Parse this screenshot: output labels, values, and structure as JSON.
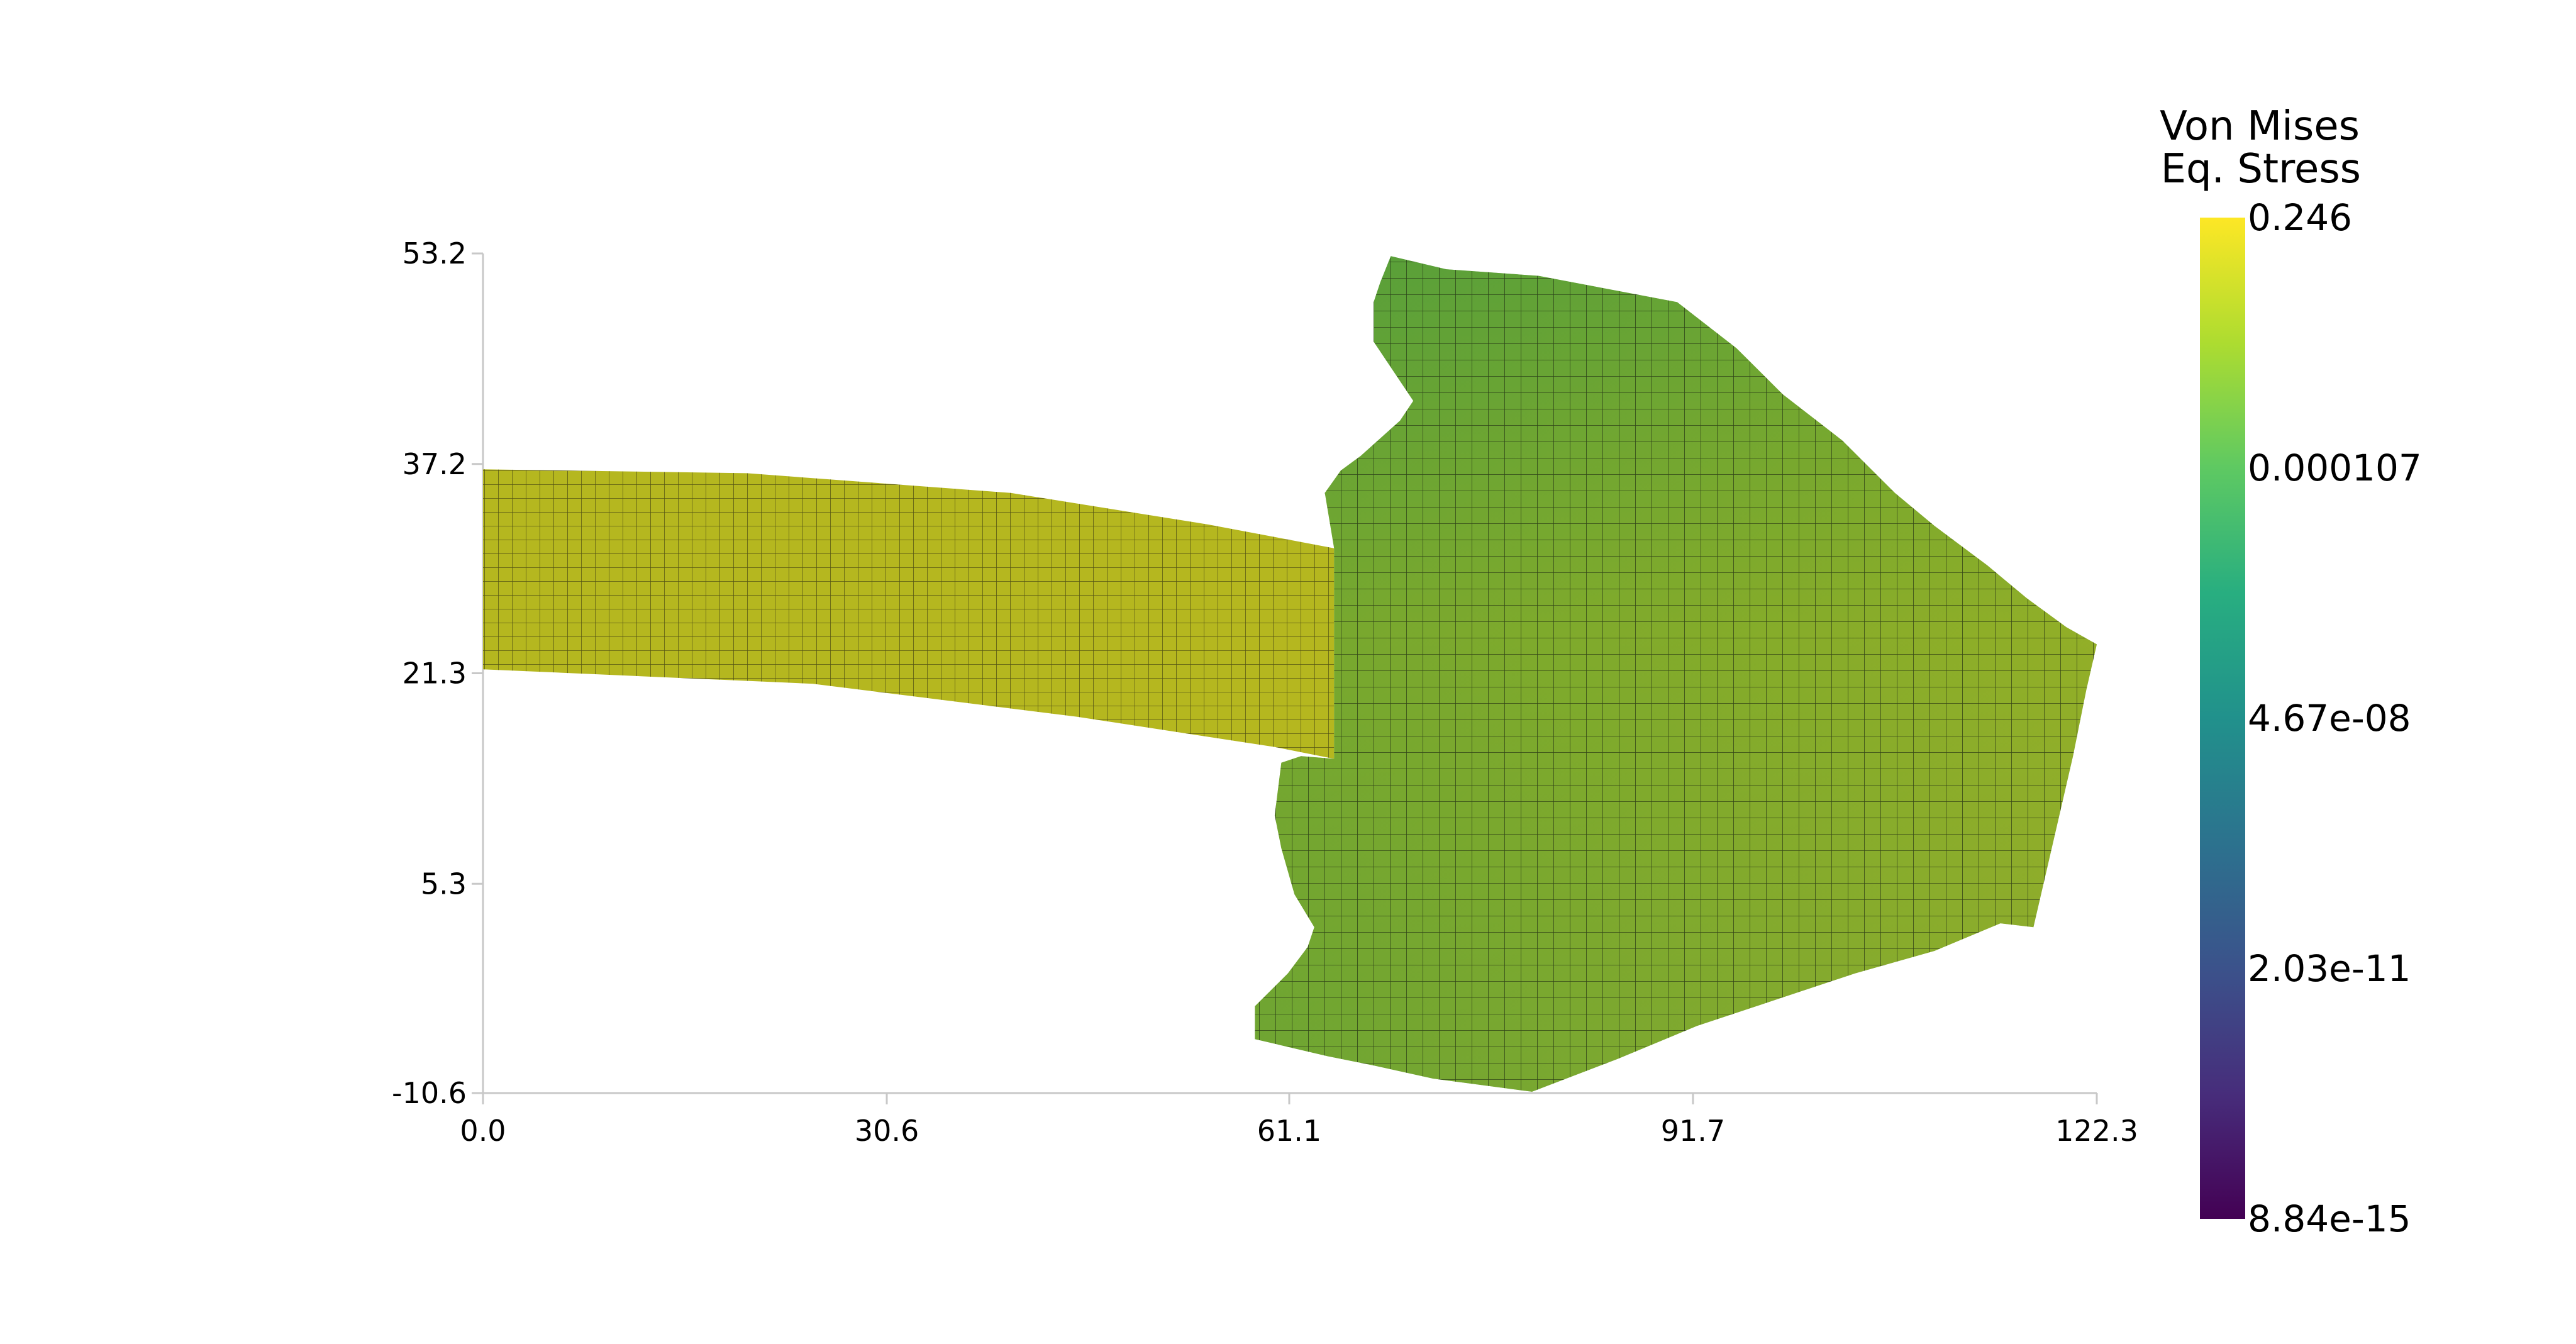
{
  "chart_data": {
    "type": "heatmap",
    "title": "",
    "xlabel": "",
    "ylabel": "",
    "xlim": [
      0.0,
      122.3
    ],
    "ylim": [
      -10.6,
      53.2
    ],
    "x_ticks": [
      "0.0",
      "30.6",
      "61.1",
      "91.7",
      "122.3"
    ],
    "y_ticks": [
      "53.2",
      "37.2",
      "21.3",
      "5.3",
      "-10.6"
    ],
    "grid": false,
    "colormap": "viridis",
    "colorbar": {
      "title_line1": "Von Mises",
      "title_line2": "Eq. Stress",
      "scale": "log",
      "labels": [
        "0.246",
        "0.000107",
        "4.67e-08",
        "2.03e-11",
        "8.84e-15"
      ],
      "stops": [
        "#440154",
        "#472d7b",
        "#3b528b",
        "#2c728e",
        "#21918c",
        "#28ae80",
        "#5ec962",
        "#addc30",
        "#fde725"
      ]
    },
    "mesh": {
      "beam": {
        "description_color": "#b5b71f",
        "top_edge": [
          [
            0.0,
            36.8
          ],
          [
            20,
            36.5
          ],
          [
            40,
            35.0
          ],
          [
            55,
            32.6
          ],
          [
            64.5,
            30.8
          ]
        ],
        "bottom_edge": [
          [
            64.5,
            14.8
          ],
          [
            60,
            15.7
          ],
          [
            45,
            18.0
          ],
          [
            25,
            20.5
          ],
          [
            0.0,
            21.6
          ]
        ]
      },
      "body": {
        "color_upper_left": "#4e9c3d",
        "color_center": "#7ea92c",
        "color_right_tip": "#b7b722",
        "outline": [
          [
            68.8,
            53.0
          ],
          [
            73,
            52.0
          ],
          [
            80,
            51.5
          ],
          [
            90.5,
            49.5
          ],
          [
            95,
            46.0
          ],
          [
            98.5,
            42.5
          ],
          [
            103,
            39.0
          ],
          [
            107,
            35.0
          ],
          [
            110,
            32.5
          ],
          [
            114,
            29.5
          ],
          [
            117,
            27.0
          ],
          [
            120,
            24.8
          ],
          [
            122.3,
            23.5
          ],
          [
            121.5,
            20.0
          ],
          [
            120.5,
            15.0
          ],
          [
            119,
            8.5
          ],
          [
            117.5,
            2.0
          ],
          [
            115,
            2.3
          ],
          [
            110,
            0.2
          ],
          [
            104,
            -1.5
          ],
          [
            98,
            -3.5
          ],
          [
            92,
            -5.5
          ],
          [
            86,
            -8.0
          ],
          [
            79.5,
            -10.5
          ],
          [
            72,
            -9.5
          ],
          [
            67.5,
            -8.5
          ],
          [
            64.0,
            -7.8
          ],
          [
            58.5,
            -6.5
          ],
          [
            58.5,
            -4.0
          ],
          [
            59.5,
            -3.0
          ],
          [
            61.0,
            -1.5
          ],
          [
            62.5,
            0.5
          ],
          [
            63.0,
            2.0
          ],
          [
            61.5,
            4.5
          ],
          [
            60.5,
            8.0
          ],
          [
            60.0,
            10.5
          ],
          [
            60.5,
            14.5
          ],
          [
            62.0,
            15.0
          ],
          [
            64.5,
            14.8
          ],
          [
            64.5,
            30.8
          ],
          [
            63.8,
            35.0
          ],
          [
            65.0,
            36.7
          ],
          [
            66.5,
            37.8
          ],
          [
            69.5,
            40.5
          ],
          [
            70.5,
            42.0
          ],
          [
            68.5,
            45.0
          ],
          [
            67.5,
            46.5
          ],
          [
            67.5,
            49.5
          ],
          [
            68.0,
            51.0
          ]
        ]
      }
    }
  }
}
